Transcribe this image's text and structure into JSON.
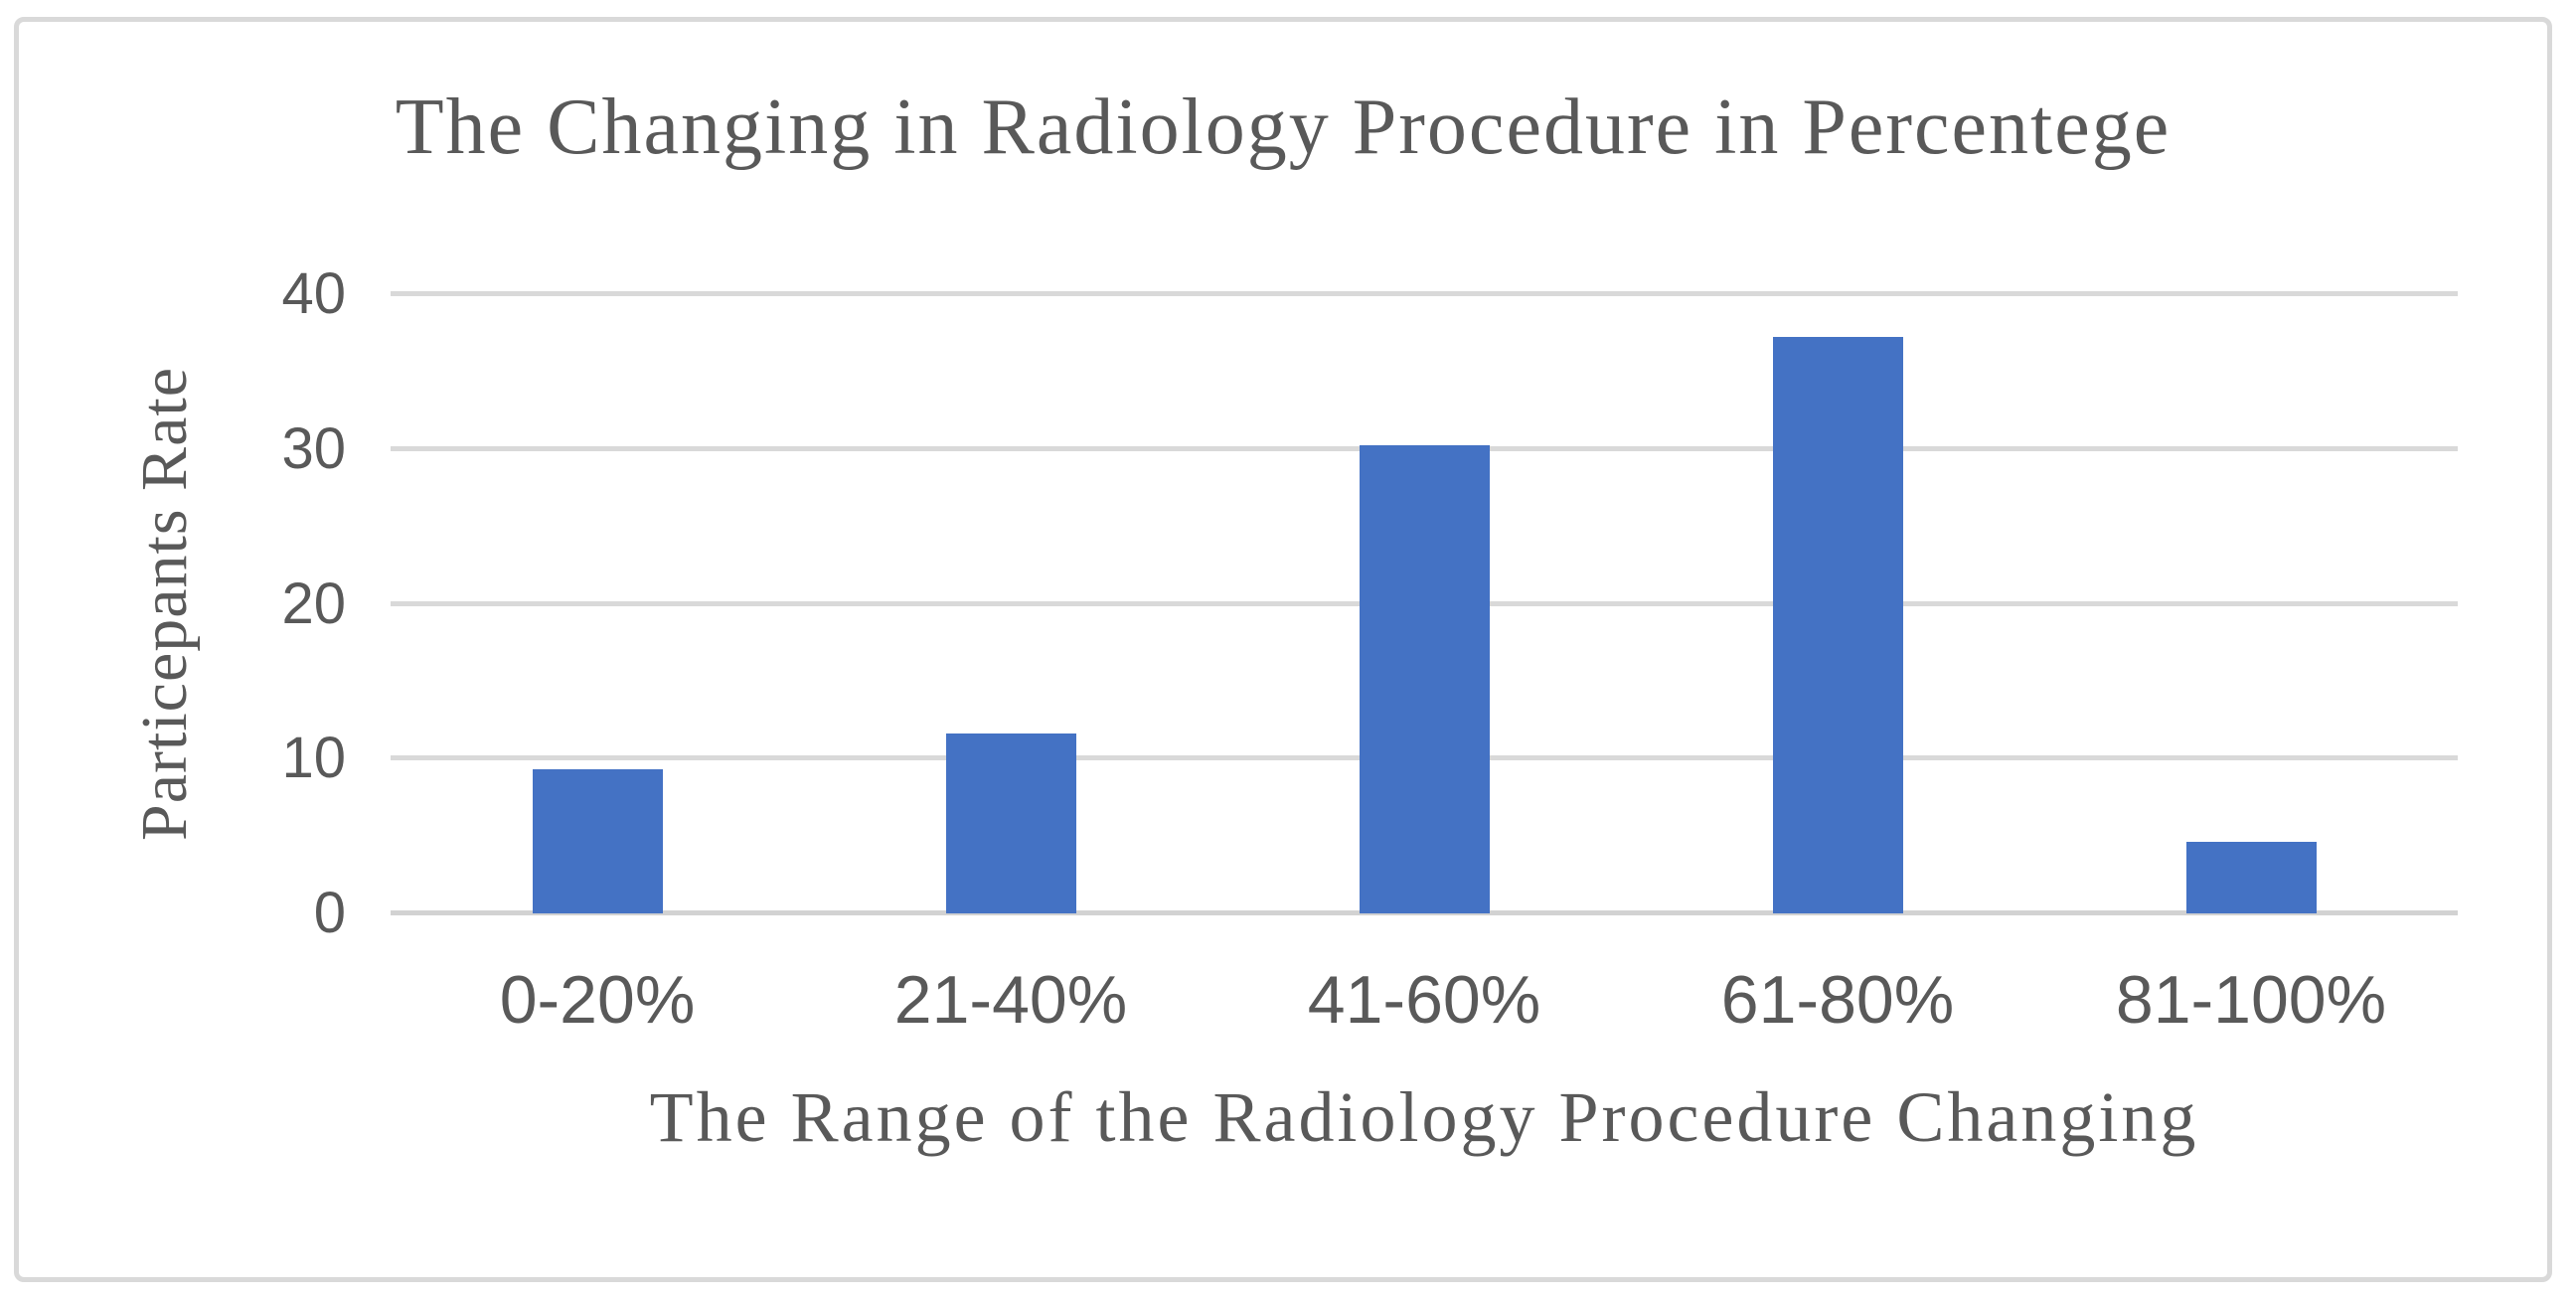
{
  "chart_data": {
    "type": "bar",
    "title": "The Changing in Radiology Procedure in Percentege",
    "xlabel": "The Range of the Radiology Procedure Changing",
    "ylabel": "Particepants Rate",
    "categories": [
      "0-20%",
      "21-40%",
      "41-60%",
      "61-80%",
      "81-100%"
    ],
    "values": [
      9.3,
      11.63,
      30.23,
      37.21,
      4.65
    ],
    "ylim": [
      0,
      40
    ],
    "yticks": [
      0,
      10,
      20,
      30,
      40
    ],
    "grid": "horizontal-only",
    "legend": "none",
    "bar_color": "#4472C4",
    "text_color": "#595959",
    "gridline_color": "#D9D9D9",
    "frame_color": "#D9D9D9"
  }
}
